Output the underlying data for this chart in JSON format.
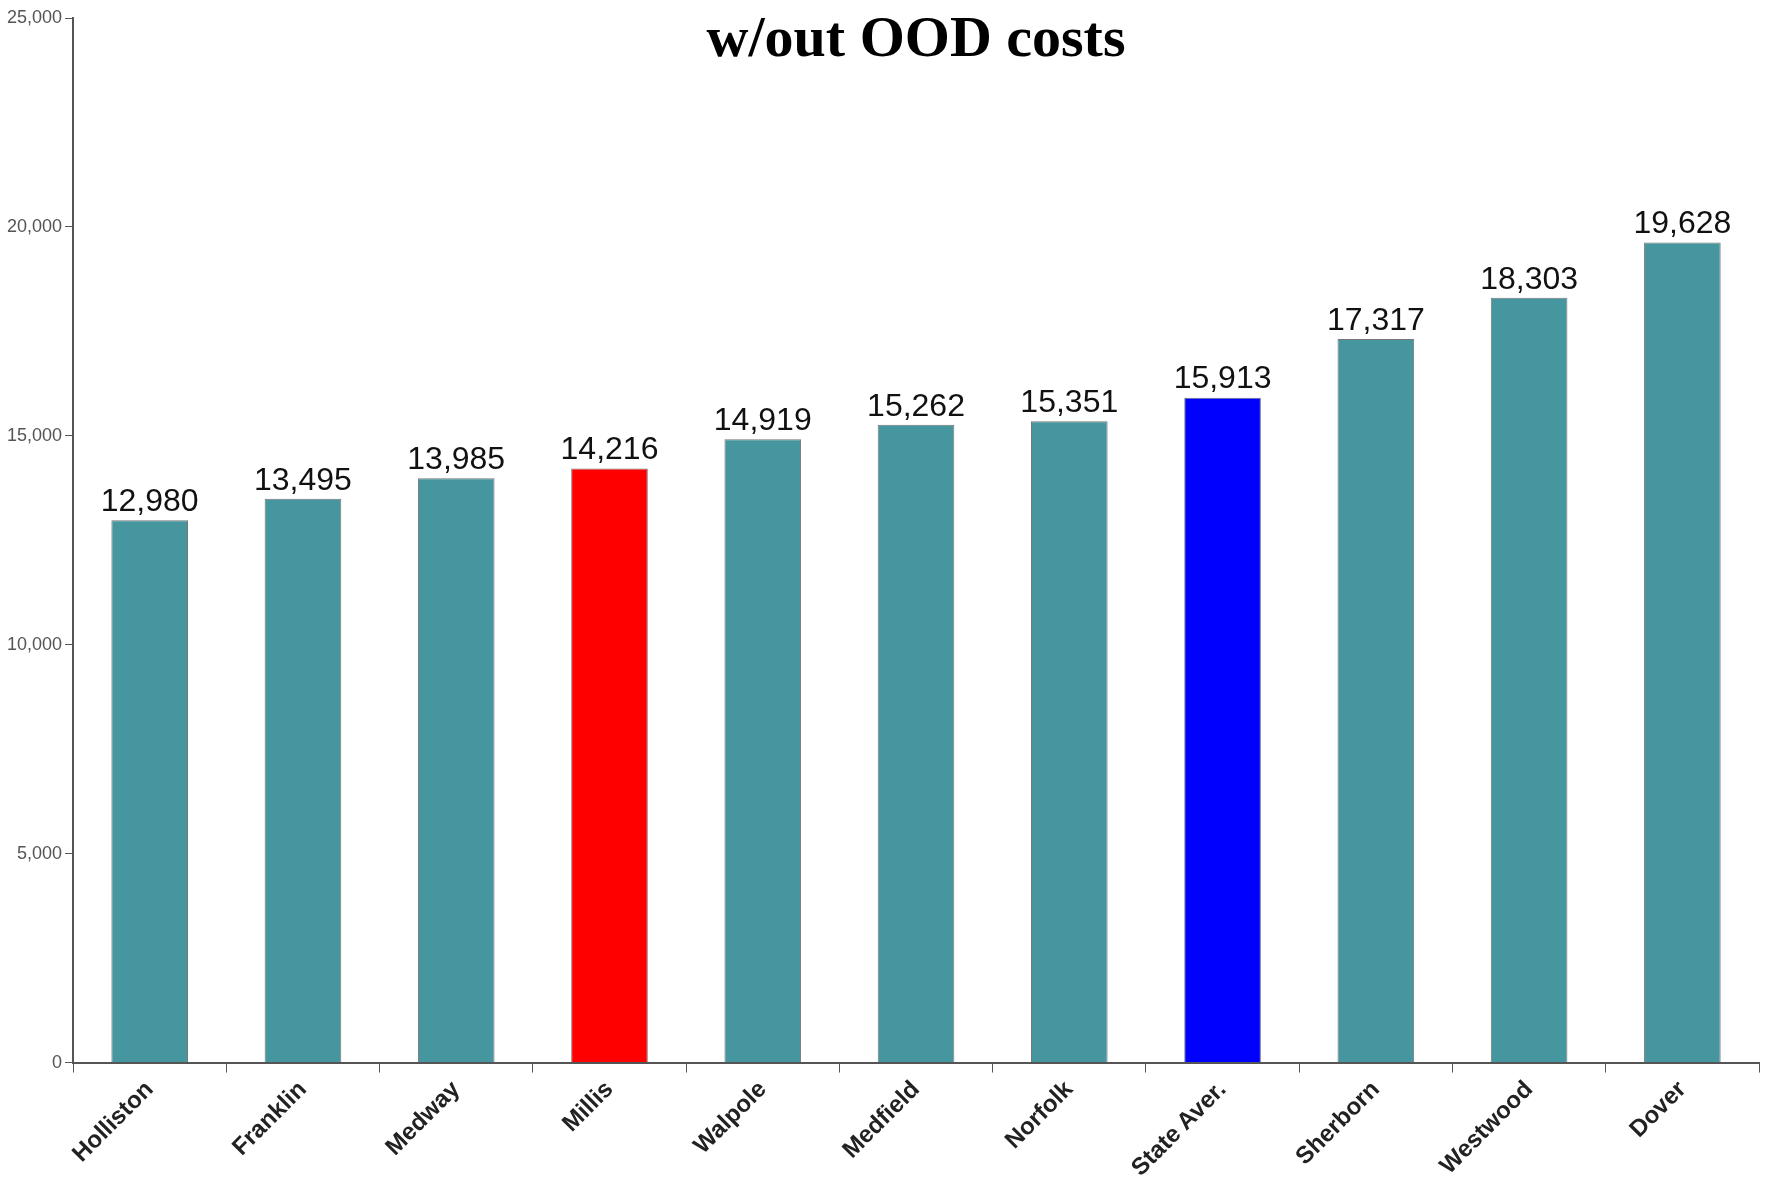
{
  "chart_data": {
    "type": "bar",
    "title": "w/out OOD costs",
    "categories": [
      "Holliston",
      "Franklin",
      "Medway",
      "Millis",
      "Walpole",
      "Medfield",
      "Norfolk",
      "State Aver.",
      "Sherborn",
      "Westwood",
      "Dover"
    ],
    "values": [
      12980,
      13495,
      13985,
      14216,
      14919,
      15262,
      15351,
      15913,
      17317,
      18303,
      19628
    ],
    "colors": [
      "#45969e",
      "#45969e",
      "#45969e",
      "#ff0000",
      "#45969e",
      "#45969e",
      "#45969e",
      "#0000ff",
      "#45969e",
      "#45969e",
      "#45969e"
    ],
    "ylim": [
      0,
      25000
    ],
    "yticks": [
      {
        "value": 0,
        "label": "0"
      },
      {
        "value": 5000,
        "label": "5,000"
      },
      {
        "value": 10000,
        "label": "10,000"
      },
      {
        "value": 15000,
        "label": "15,000"
      },
      {
        "value": 20000,
        "label": "20,000"
      },
      {
        "value": 25000,
        "label": "25,000"
      }
    ],
    "value_labels": [
      "12,980",
      "13,495",
      "13,985",
      "14,216",
      "14,919",
      "15,262",
      "15,351",
      "15,913",
      "17,317",
      "18,303",
      "19,628"
    ],
    "grid": false,
    "legend": false
  }
}
